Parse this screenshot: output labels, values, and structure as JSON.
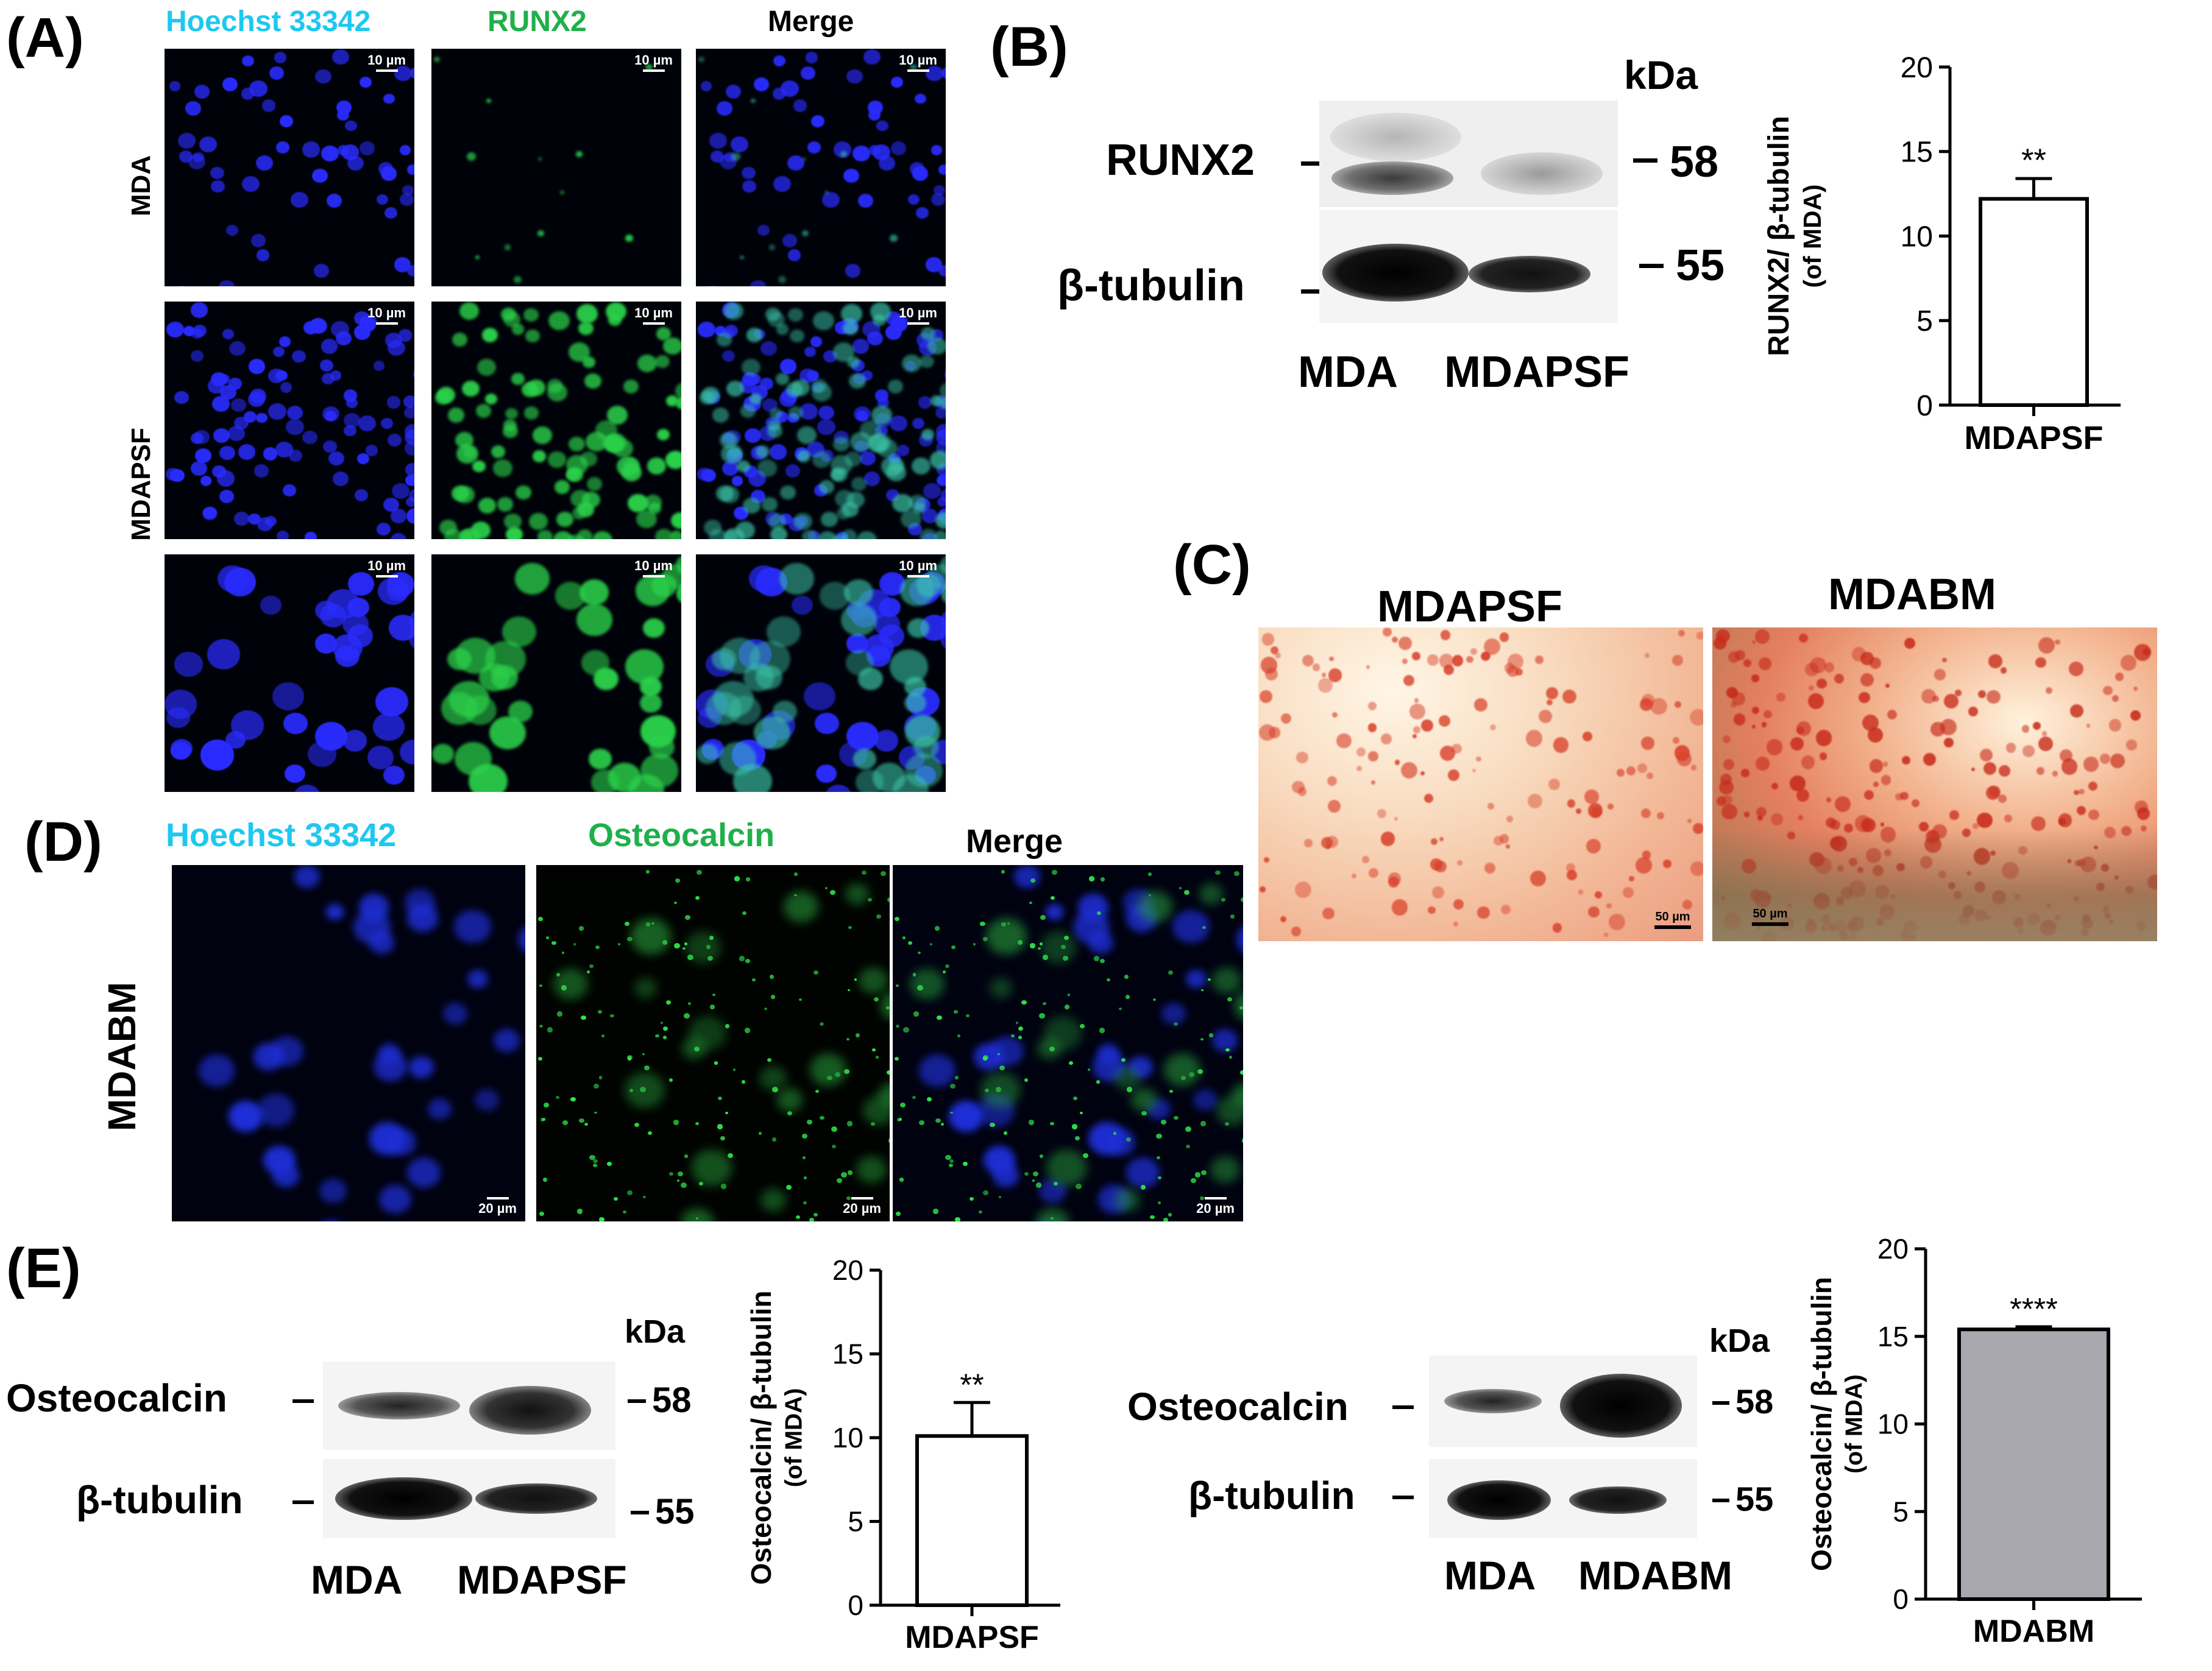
{
  "panel_a": {
    "letter": "(A)",
    "col_headers": [
      "Hoechst 33342",
      "RUNX2",
      "Merge"
    ],
    "row_labels": [
      "MDA",
      "MDAPSF"
    ],
    "scale": "10 µm"
  },
  "panel_b": {
    "letter": "(B)",
    "kda": "kDa",
    "bands": [
      {
        "name": "RUNX2",
        "kda": "58"
      },
      {
        "name": "β-tubulin",
        "kda": "55"
      }
    ],
    "lanes": [
      "MDA",
      "MDAPSF"
    ]
  },
  "panel_c": {
    "letter": "(C)",
    "titles": [
      "MDAPSF",
      "MDABM"
    ],
    "scale": "50 µm"
  },
  "panel_d": {
    "letter": "(D)",
    "col_headers": [
      "Hoechst 33342",
      "Osteocalcin",
      "Merge"
    ],
    "row_label": "MDABM",
    "scale": "20 µm"
  },
  "panel_e": {
    "letter": "(E)",
    "left_blot": {
      "kda": "kDa",
      "bands": [
        {
          "name": "Osteocalcin",
          "kda": "58"
        },
        {
          "name": "β-tubulin",
          "kda": "55"
        }
      ],
      "lanes": [
        "MDA",
        "MDAPSF"
      ]
    },
    "right_blot": {
      "kda": "kDa",
      "bands": [
        {
          "name": "Osteocalcin",
          "kda": "58"
        },
        {
          "name": "β-tubulin",
          "kda": "55"
        }
      ],
      "lanes": [
        "MDA",
        "MDABM"
      ]
    }
  },
  "colors": {
    "hoechst": "#1ec8f0",
    "green_label": "#1fb04a",
    "nucleus_blue": "#2a2cff",
    "runx2_green": "#2bd14a",
    "bar_gray": "#a7a7ad",
    "stain_red": "#d8402a"
  },
  "chart_data": [
    {
      "type": "bar",
      "categories": [
        "MDAPSF"
      ],
      "values": [
        12.2
      ],
      "error": [
        1.2
      ],
      "annotation": "**",
      "ylabel": "RUNX2/ β-tubulin (of MDA)",
      "ylim": [
        0,
        20
      ],
      "yticks": [
        0,
        5,
        10,
        15,
        20
      ],
      "bar_fill": "#ffffff"
    },
    {
      "type": "bar",
      "categories": [
        "MDAPSF"
      ],
      "values": [
        10.1
      ],
      "error": [
        2.0
      ],
      "annotation": "**",
      "ylabel": "Osteocalcin/ β-tubulin (of MDA)",
      "ylim": [
        0,
        20
      ],
      "yticks": [
        0,
        5,
        10,
        15,
        20
      ],
      "bar_fill": "#ffffff"
    },
    {
      "type": "bar",
      "categories": [
        "MDABM"
      ],
      "values": [
        15.4
      ],
      "error": [
        0.15
      ],
      "annotation": "****",
      "ylabel": "Osteocalcin/ β-tubulin (of MDA)",
      "ylim": [
        0,
        20
      ],
      "yticks": [
        0,
        5,
        10,
        15,
        20
      ],
      "bar_fill": "#a7a7ad"
    }
  ]
}
